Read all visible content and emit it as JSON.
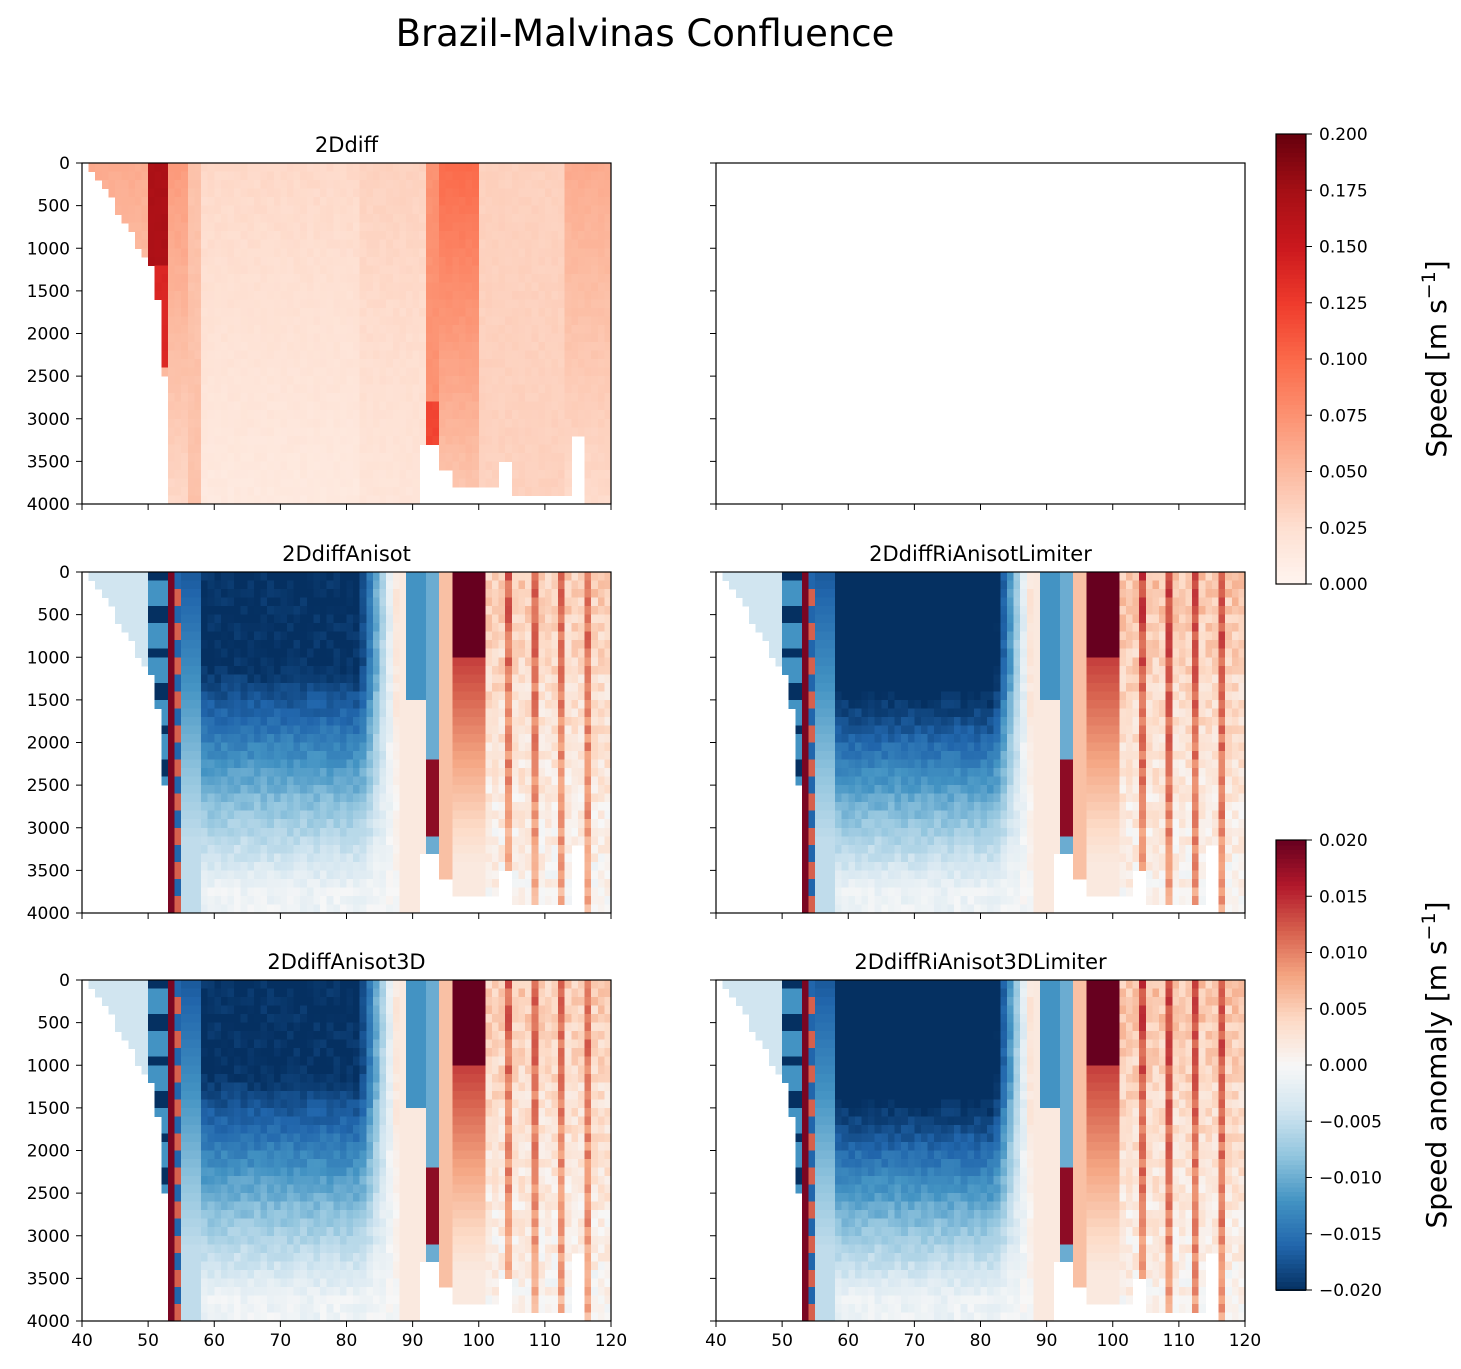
{
  "chart_data": {
    "type": "heatmap",
    "title": "Brazil-Malvinas Confluence",
    "xlim": [
      40,
      120
    ],
    "ylim": [
      4000,
      0
    ],
    "xticks": [
      40,
      50,
      60,
      70,
      80,
      90,
      100,
      110,
      120
    ],
    "yticks": [
      0,
      500,
      1000,
      1500,
      2000,
      2500,
      3000,
      3500,
      4000
    ],
    "panels": [
      {
        "title": "2Ddiff",
        "field": "speed",
        "note": "mean along-section speed; strongest jets near x=51-53 and x=93-100"
      },
      {
        "title": "",
        "field": "empty"
      },
      {
        "title": "2DdiffAnisot",
        "field": "anomaly"
      },
      {
        "title": "2DdiffRiAnisotLimiter",
        "field": "anomaly"
      },
      {
        "title": "2DdiffAnisot3D",
        "field": "anomaly"
      },
      {
        "title": "2DdiffRiAnisot3DLimiter",
        "field": "anomaly"
      }
    ],
    "colorbars": [
      {
        "label": "Speed [m s",
        "exponent": "−1",
        "label_tail": "]",
        "cmap": "Reds",
        "vmin": 0.0,
        "vmax": 0.2,
        "ticks": [
          "0.000",
          "0.025",
          "0.050",
          "0.075",
          "0.100",
          "0.125",
          "0.150",
          "0.175",
          "0.200"
        ]
      },
      {
        "label": "Speed anomaly [m s",
        "exponent": "−1",
        "label_tail": "]",
        "cmap": "RdBu_r",
        "vmin": -0.02,
        "vmax": 0.02,
        "ticks": [
          "−0.020",
          "−0.015",
          "−0.010",
          "−0.005",
          "0.000",
          "0.005",
          "0.010",
          "0.015",
          "0.020"
        ]
      }
    ],
    "anomaly_features": [
      {
        "x": [
          50,
          53
        ],
        "depth": [
          0,
          3000
        ],
        "value": -0.02,
        "desc": "negative banding near western slope"
      },
      {
        "x": [
          53.5,
          54.5
        ],
        "depth": [
          0,
          3500
        ],
        "value": 0.018,
        "desc": "strong positive narrow jet"
      },
      {
        "x": [
          58,
          82
        ],
        "depth": [
          0,
          1000
        ],
        "value": -0.02,
        "desc": "deep blue upper core"
      },
      {
        "x": [
          58,
          88
        ],
        "depth": [
          1000,
          3000
        ],
        "value": -0.012,
        "desc": "blue decaying with depth"
      },
      {
        "x": [
          96,
          100
        ],
        "depth": [
          0,
          1000
        ],
        "value": 0.02,
        "desc": "red core east of front"
      },
      {
        "x": [
          100,
          120
        ],
        "depth": [
          0,
          3500
        ],
        "value": 0.007,
        "desc": "weak positive banding"
      },
      {
        "x": [
          92,
          94
        ],
        "depth": [
          2400,
          3100
        ],
        "value": 0.018,
        "desc": "deep red spot"
      }
    ]
  }
}
